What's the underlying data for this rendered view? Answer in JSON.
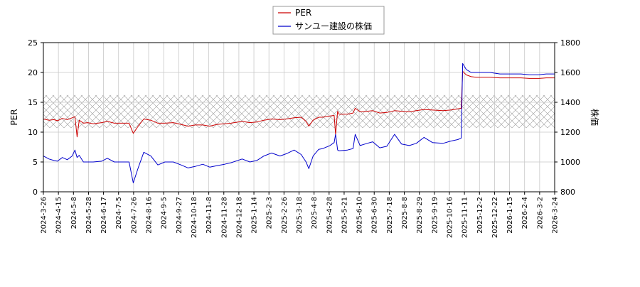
{
  "chart_data": {
    "type": "line",
    "title": "",
    "xlabel": "",
    "ylabel": "PER",
    "ylabel_right": "株価",
    "ylim": [
      0,
      25
    ],
    "ylim_right": [
      800,
      1800
    ],
    "yticks": [
      0,
      5,
      10,
      15,
      20,
      25
    ],
    "yticks_right": [
      800,
      1000,
      1200,
      1400,
      1600,
      1800
    ],
    "grid": true,
    "legend": "top-center",
    "xlim": [
      "2024-03-26",
      "2026-03-24"
    ],
    "x_tick_labels": [
      "2024-3-26",
      "2024-4-15",
      "2024-5-8",
      "2024-5-28",
      "2024-6-17",
      "2024-7-5",
      "2024-7-26",
      "2024-8-16",
      "2024-9-5",
      "2024-9-27",
      "2024-10-18",
      "2024-11-8",
      "2024-11-28",
      "2024-12-18",
      "2025-1-14",
      "2025-2-3",
      "2025-2-26",
      "2025-3-18",
      "2025-4-8",
      "2025-4-28",
      "2025-5-21",
      "2025-6-10",
      "2025-6-30",
      "2025-7-18",
      "2025-8-8",
      "2025-8-29",
      "2025-9-19",
      "2025-10-16",
      "2025-11-11",
      "2025-12-2",
      "2025-12-22",
      "2026-1-15",
      "2026-2-4",
      "2026-3-2",
      "2026-3-24"
    ],
    "shaded_band": {
      "axis": "left",
      "from": 10.7,
      "to": 16.2,
      "pattern": "crosshatch"
    },
    "series": [
      {
        "name": "PER",
        "axis": "left",
        "color": "#cc0000",
        "points": [
          [
            "2024-03-26",
            12.2
          ],
          [
            "2024-04-03",
            12.0
          ],
          [
            "2024-04-10",
            12.1
          ],
          [
            "2024-04-15",
            11.9
          ],
          [
            "2024-04-22",
            12.3
          ],
          [
            "2024-04-29",
            12.1
          ],
          [
            "2024-05-06",
            12.4
          ],
          [
            "2024-05-10",
            12.6
          ],
          [
            "2024-05-13",
            9.2
          ],
          [
            "2024-05-16",
            12.0
          ],
          [
            "2024-05-22",
            11.5
          ],
          [
            "2024-05-28",
            11.6
          ],
          [
            "2024-06-05",
            11.4
          ],
          [
            "2024-06-17",
            11.6
          ],
          [
            "2024-06-25",
            11.8
          ],
          [
            "2024-07-05",
            11.5
          ],
          [
            "2024-07-15",
            11.5
          ],
          [
            "2024-07-26",
            11.5
          ],
          [
            "2024-08-01",
            9.8
          ],
          [
            "2024-08-08",
            11.0
          ],
          [
            "2024-08-16",
            12.2
          ],
          [
            "2024-08-26",
            12.0
          ],
          [
            "2024-09-05",
            11.5
          ],
          [
            "2024-09-15",
            11.5
          ],
          [
            "2024-09-27",
            11.6
          ],
          [
            "2024-10-08",
            11.3
          ],
          [
            "2024-10-18",
            11.0
          ],
          [
            "2024-10-28",
            11.2
          ],
          [
            "2024-11-08",
            11.2
          ],
          [
            "2024-11-18",
            11.0
          ],
          [
            "2024-11-28",
            11.3
          ],
          [
            "2024-12-09",
            11.4
          ],
          [
            "2024-12-18",
            11.5
          ],
          [
            "2025-01-03",
            11.8
          ],
          [
            "2025-01-14",
            11.6
          ],
          [
            "2025-01-24",
            11.7
          ],
          [
            "2025-02-03",
            12.0
          ],
          [
            "2025-02-14",
            12.2
          ],
          [
            "2025-02-26",
            12.1
          ],
          [
            "2025-03-07",
            12.2
          ],
          [
            "2025-03-18",
            12.4
          ],
          [
            "2025-03-28",
            12.5
          ],
          [
            "2025-04-04",
            11.8
          ],
          [
            "2025-04-08",
            11.0
          ],
          [
            "2025-04-14",
            12.0
          ],
          [
            "2025-04-22",
            12.5
          ],
          [
            "2025-04-28",
            12.5
          ],
          [
            "2025-05-08",
            12.7
          ],
          [
            "2025-05-14",
            12.8
          ],
          [
            "2025-05-16",
            9.6
          ],
          [
            "2025-05-19",
            13.5
          ],
          [
            "2025-05-21",
            13.0
          ],
          [
            "2025-06-02",
            13.0
          ],
          [
            "2025-06-10",
            13.2
          ],
          [
            "2025-06-13",
            14.0
          ],
          [
            "2025-06-20",
            13.4
          ],
          [
            "2025-06-30",
            13.5
          ],
          [
            "2025-07-08",
            13.6
          ],
          [
            "2025-07-18",
            13.2
          ],
          [
            "2025-07-28",
            13.3
          ],
          [
            "2025-08-08",
            13.6
          ],
          [
            "2025-08-18",
            13.5
          ],
          [
            "2025-08-29",
            13.4
          ],
          [
            "2025-09-08",
            13.6
          ],
          [
            "2025-09-19",
            13.8
          ],
          [
            "2025-10-01",
            13.7
          ],
          [
            "2025-10-16",
            13.6
          ],
          [
            "2025-10-27",
            13.7
          ],
          [
            "2025-11-06",
            13.9
          ],
          [
            "2025-11-11",
            14.0
          ],
          [
            "2025-11-13",
            20.2
          ],
          [
            "2025-11-18",
            19.6
          ],
          [
            "2025-11-25",
            19.3
          ],
          [
            "2025-12-02",
            19.2
          ],
          [
            "2025-12-12",
            19.2
          ],
          [
            "2025-12-22",
            19.2
          ],
          [
            "2026-01-05",
            19.1
          ],
          [
            "2026-01-15",
            19.1
          ],
          [
            "2026-01-26",
            19.1
          ],
          [
            "2026-02-04",
            19.1
          ],
          [
            "2026-02-16",
            19.0
          ],
          [
            "2026-03-02",
            19.0
          ],
          [
            "2026-03-12",
            19.1
          ],
          [
            "2026-03-24",
            19.1
          ]
        ]
      },
      {
        "name": "サンユー建設の株価",
        "axis": "right",
        "color": "#0000cc",
        "points": [
          [
            "2024-03-26",
            1040
          ],
          [
            "2024-04-03",
            1020
          ],
          [
            "2024-04-10",
            1010
          ],
          [
            "2024-04-15",
            1005
          ],
          [
            "2024-04-22",
            1030
          ],
          [
            "2024-04-29",
            1015
          ],
          [
            "2024-05-06",
            1040
          ],
          [
            "2024-05-10",
            1080
          ],
          [
            "2024-05-13",
            1030
          ],
          [
            "2024-05-16",
            1045
          ],
          [
            "2024-05-22",
            1000
          ],
          [
            "2024-05-28",
            1000
          ],
          [
            "2024-06-05",
            1000
          ],
          [
            "2024-06-17",
            1005
          ],
          [
            "2024-06-25",
            1025
          ],
          [
            "2024-07-05",
            1000
          ],
          [
            "2024-07-15",
            1000
          ],
          [
            "2024-07-26",
            1000
          ],
          [
            "2024-08-01",
            860
          ],
          [
            "2024-08-08",
            960
          ],
          [
            "2024-08-16",
            1065
          ],
          [
            "2024-08-26",
            1040
          ],
          [
            "2024-09-05",
            980
          ],
          [
            "2024-09-15",
            1000
          ],
          [
            "2024-09-27",
            1000
          ],
          [
            "2024-10-08",
            980
          ],
          [
            "2024-10-18",
            960
          ],
          [
            "2024-10-28",
            970
          ],
          [
            "2024-11-08",
            985
          ],
          [
            "2024-11-18",
            965
          ],
          [
            "2024-11-28",
            975
          ],
          [
            "2024-12-09",
            985
          ],
          [
            "2024-12-18",
            995
          ],
          [
            "2025-01-03",
            1020
          ],
          [
            "2025-01-14",
            1000
          ],
          [
            "2025-01-24",
            1010
          ],
          [
            "2025-02-03",
            1040
          ],
          [
            "2025-02-14",
            1060
          ],
          [
            "2025-02-26",
            1040
          ],
          [
            "2025-03-07",
            1055
          ],
          [
            "2025-03-18",
            1080
          ],
          [
            "2025-03-28",
            1050
          ],
          [
            "2025-04-04",
            1000
          ],
          [
            "2025-04-08",
            955
          ],
          [
            "2025-04-14",
            1040
          ],
          [
            "2025-04-22",
            1085
          ],
          [
            "2025-04-28",
            1090
          ],
          [
            "2025-05-08",
            1110
          ],
          [
            "2025-05-14",
            1130
          ],
          [
            "2025-05-16",
            1185
          ],
          [
            "2025-05-19",
            1080
          ],
          [
            "2025-05-21",
            1075
          ],
          [
            "2025-06-02",
            1080
          ],
          [
            "2025-06-10",
            1090
          ],
          [
            "2025-06-13",
            1185
          ],
          [
            "2025-06-20",
            1110
          ],
          [
            "2025-06-30",
            1125
          ],
          [
            "2025-07-08",
            1135
          ],
          [
            "2025-07-18",
            1095
          ],
          [
            "2025-07-28",
            1105
          ],
          [
            "2025-08-08",
            1185
          ],
          [
            "2025-08-18",
            1120
          ],
          [
            "2025-08-29",
            1110
          ],
          [
            "2025-09-08",
            1125
          ],
          [
            "2025-09-19",
            1165
          ],
          [
            "2025-10-01",
            1130
          ],
          [
            "2025-10-16",
            1125
          ],
          [
            "2025-10-27",
            1140
          ],
          [
            "2025-11-06",
            1150
          ],
          [
            "2025-11-11",
            1160
          ],
          [
            "2025-11-13",
            1660
          ],
          [
            "2025-11-18",
            1620
          ],
          [
            "2025-11-25",
            1600
          ],
          [
            "2025-12-02",
            1600
          ],
          [
            "2025-12-12",
            1600
          ],
          [
            "2025-12-22",
            1600
          ],
          [
            "2026-01-05",
            1590
          ],
          [
            "2026-01-15",
            1590
          ],
          [
            "2026-01-26",
            1590
          ],
          [
            "2026-02-04",
            1590
          ],
          [
            "2026-02-16",
            1585
          ],
          [
            "2026-03-02",
            1585
          ],
          [
            "2026-03-12",
            1590
          ],
          [
            "2026-03-24",
            1590
          ]
        ]
      }
    ]
  }
}
